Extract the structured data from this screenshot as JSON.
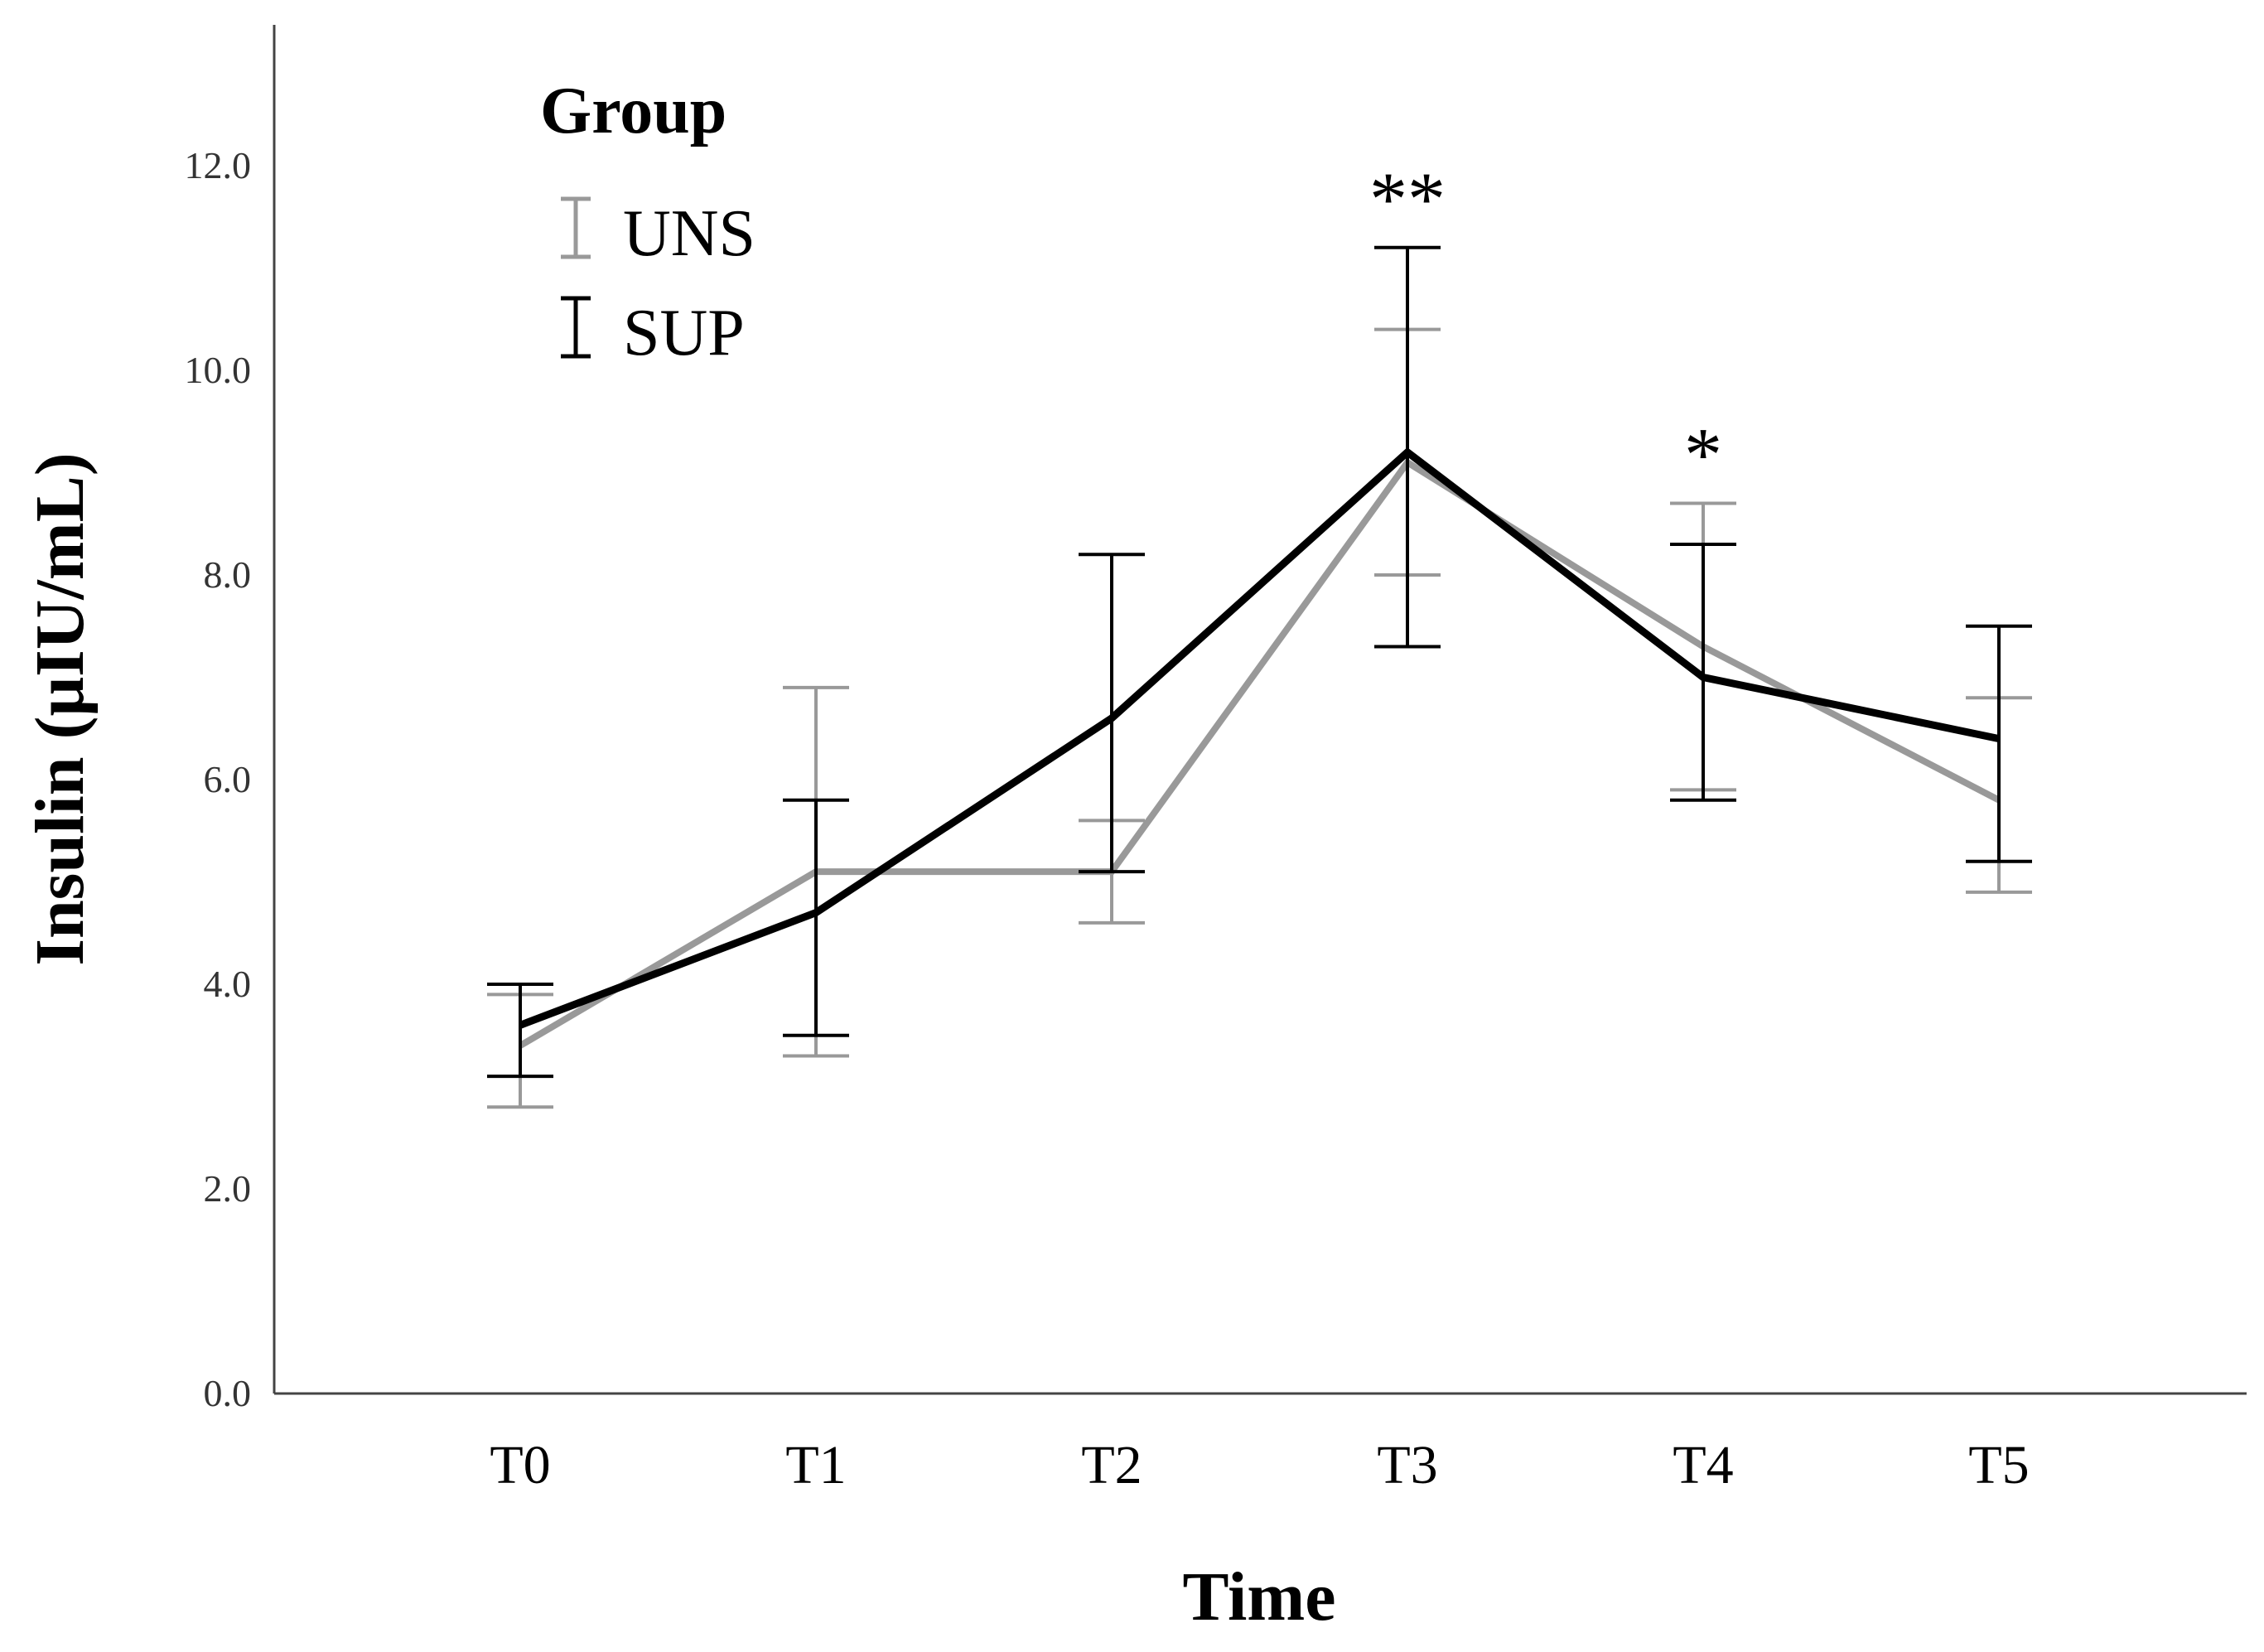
{
  "chart_data": {
    "type": "line",
    "title": "",
    "xlabel": "Time",
    "ylabel": "Insulin (μIU/mL)",
    "categories": [
      "T0",
      "T1",
      "T2",
      "T3",
      "T4",
      "T5"
    ],
    "ylim": [
      0,
      13.5
    ],
    "yticks": [
      0,
      2,
      4,
      6,
      8,
      10,
      12
    ],
    "ytick_labels": [
      "0.0",
      "2.0",
      "4.0",
      "6.0",
      "8.0",
      "10.0",
      "12.0"
    ],
    "legend": {
      "title": "Group",
      "position": "top-left"
    },
    "series": [
      {
        "name": "UNS",
        "color": "#999999",
        "values": [
          3.4,
          5.1,
          5.1,
          9.1,
          7.3,
          5.8
        ],
        "error_low": [
          2.8,
          3.3,
          4.6,
          8.0,
          5.9,
          4.9
        ],
        "error_high": [
          3.9,
          6.9,
          5.6,
          10.4,
          8.7,
          6.8
        ]
      },
      {
        "name": "SUP",
        "color": "#000000",
        "values": [
          3.6,
          4.7,
          6.6,
          9.2,
          7.0,
          6.4
        ],
        "error_low": [
          3.1,
          3.5,
          5.1,
          7.3,
          5.8,
          5.2
        ],
        "error_high": [
          4.0,
          5.8,
          8.2,
          11.2,
          8.3,
          7.5
        ]
      }
    ],
    "annotations": [
      {
        "category": "T3",
        "text": "**"
      },
      {
        "category": "T4",
        "text": "*"
      }
    ]
  }
}
